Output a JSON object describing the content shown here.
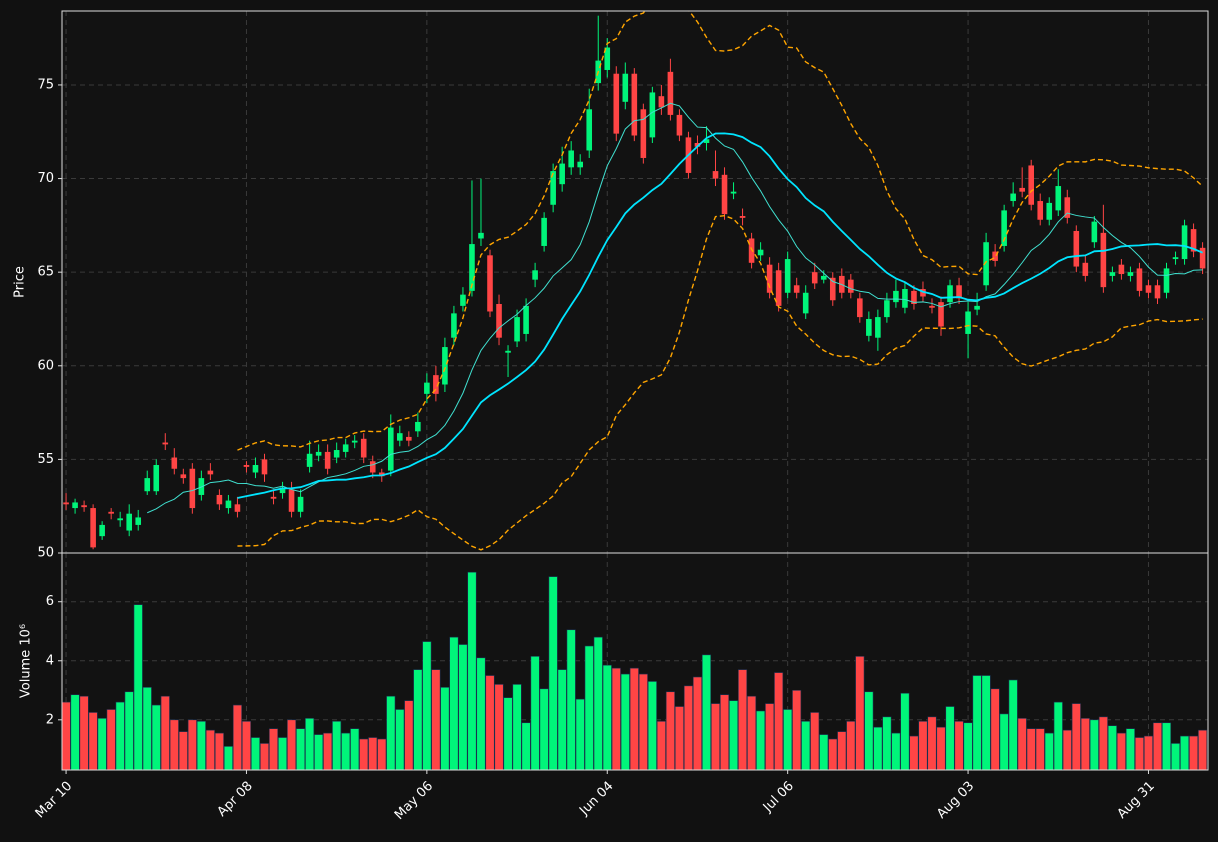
{
  "chart_data": {
    "type": "candlestick",
    "ylabel": "Price",
    "up_color": "#00f57a",
    "down_color": "#ff4545",
    "mav": [
      10,
      20
    ],
    "mav_colors": [
      "#40e0d0",
      "#00e5ff"
    ],
    "bollinger": [
      20,
      2
    ],
    "bollinger_color": "#ffa500",
    "grid": true,
    "ylim": [
      50,
      78.95
    ],
    "yticks": [
      50,
      55,
      60,
      65,
      70,
      75
    ],
    "categories": [
      "Mar 10",
      null,
      null,
      null,
      null,
      null,
      null,
      null,
      null,
      null,
      null,
      null,
      null,
      null,
      null,
      null,
      null,
      null,
      null,
      null,
      "Apr 08",
      null,
      null,
      null,
      null,
      null,
      null,
      null,
      null,
      null,
      null,
      null,
      null,
      null,
      null,
      null,
      null,
      null,
      null,
      null,
      "May 06",
      null,
      null,
      null,
      null,
      null,
      null,
      null,
      null,
      null,
      null,
      null,
      null,
      null,
      null,
      null,
      null,
      null,
      null,
      null,
      "Jun 04",
      null,
      null,
      null,
      null,
      null,
      null,
      null,
      null,
      null,
      null,
      null,
      null,
      null,
      null,
      null,
      null,
      null,
      null,
      null,
      "Jul 06",
      null,
      null,
      null,
      null,
      null,
      null,
      null,
      null,
      null,
      null,
      null,
      null,
      null,
      null,
      null,
      null,
      null,
      null,
      null,
      "Aug 03",
      null,
      null,
      null,
      null,
      null,
      null,
      null,
      null,
      null,
      null,
      null,
      null,
      null,
      null,
      null,
      null,
      null,
      null,
      null,
      "Aug 31",
      null,
      null,
      null,
      null,
      null,
      null
    ],
    "open": [
      52.7,
      52.4,
      52.55,
      52.4,
      50.9,
      52.2,
      51.75,
      51.2,
      51.5,
      53.3,
      53.3,
      55.9,
      55.1,
      54.2,
      54.5,
      53.1,
      54.4,
      53.1,
      52.4,
      52.6,
      54.7,
      54.3,
      55.0,
      53.0,
      53.2,
      53.4,
      52.2,
      54.6,
      55.2,
      55.4,
      55.1,
      55.4,
      55.9,
      56.1,
      54.9,
      54.3,
      54.4,
      56.0,
      56.2,
      56.5,
      58.5,
      59.5,
      59.0,
      61.5,
      63.2,
      64.0,
      66.8,
      65.9,
      63.3,
      60.7,
      61.3,
      61.7,
      64.6,
      66.4,
      68.6,
      69.7,
      70.6,
      70.6,
      71.5,
      75.1,
      75.8,
      75.6,
      74.1,
      75.6,
      73.7,
      72.2,
      74.4,
      75.7,
      73.4,
      72.2,
      71.9,
      71.9,
      70.4,
      70.2,
      69.2,
      68.0,
      66.8,
      65.9,
      65.4,
      65.1,
      63.9,
      64.3,
      62.8,
      65.0,
      64.6,
      64.7,
      64.8,
      64.6,
      63.6,
      61.6,
      61.5,
      62.6,
      63.4,
      63.1,
      64.0,
      64.1,
      63.2,
      63.4,
      63.4,
      64.3,
      61.7,
      63.0,
      64.3,
      66.1,
      66.4,
      68.8,
      69.5,
      70.7,
      68.8,
      67.8,
      68.3,
      69.0,
      67.2,
      65.5,
      66.6,
      67.1,
      64.8,
      65.4,
      64.8,
      65.2,
      64.3,
      64.3,
      63.9,
      65.7,
      65.7,
      67.3,
      66.3
    ],
    "high": [
      53.2,
      52.9,
      52.8,
      52.6,
      51.7,
      52.4,
      52.2,
      52.6,
      52.3,
      54.4,
      55.0,
      56.4,
      55.6,
      54.5,
      54.8,
      54.4,
      54.8,
      53.4,
      53.1,
      53.0,
      54.9,
      55.1,
      55.3,
      53.4,
      53.8,
      53.8,
      53.4,
      56.0,
      55.8,
      55.8,
      55.9,
      56.1,
      56.3,
      56.4,
      55.2,
      54.5,
      57.4,
      56.8,
      56.5,
      57.5,
      59.6,
      60.0,
      61.5,
      63.2,
      64.2,
      69.9,
      70.0,
      66.2,
      63.8,
      61.1,
      63.0,
      63.6,
      65.5,
      68.2,
      70.8,
      71.7,
      72.0,
      71.3,
      74.8,
      78.7,
      77.5,
      76.0,
      76.2,
      75.9,
      74.0,
      74.9,
      75.0,
      76.4,
      73.7,
      72.5,
      72.3,
      72.8,
      71.5,
      70.6,
      69.8,
      68.4,
      67.1,
      66.6,
      65.8,
      65.5,
      66.1,
      64.7,
      64.3,
      65.5,
      65.1,
      65.0,
      65.2,
      64.9,
      63.9,
      62.9,
      63.0,
      63.9,
      64.6,
      64.5,
      64.3,
      64.5,
      63.6,
      63.7,
      64.6,
      64.7,
      63.4,
      63.9,
      67.1,
      66.5,
      68.6,
      69.8,
      70.6,
      71.0,
      69.2,
      69.0,
      70.5,
      69.4,
      67.5,
      65.9,
      68.0,
      68.6,
      65.3,
      65.7,
      65.3,
      65.5,
      64.6,
      64.6,
      65.5,
      66.1,
      67.8,
      67.6,
      66.6
    ],
    "low": [
      52.3,
      52.1,
      52.2,
      50.2,
      50.7,
      51.8,
      51.4,
      50.9,
      51.2,
      53.1,
      53.1,
      55.5,
      54.2,
      53.7,
      52.1,
      52.8,
      53.9,
      52.3,
      52.1,
      51.9,
      54.3,
      54.0,
      53.8,
      52.6,
      52.9,
      51.9,
      51.9,
      54.3,
      54.9,
      54.2,
      54.8,
      55.1,
      55.6,
      54.8,
      54.0,
      53.8,
      54.1,
      55.7,
      55.7,
      56.2,
      58.0,
      58.1,
      58.6,
      61.1,
      62.9,
      63.7,
      66.4,
      62.6,
      61.1,
      59.4,
      61.0,
      61.3,
      64.2,
      66.1,
      68.2,
      69.3,
      70.2,
      70.2,
      71.1,
      74.7,
      75.4,
      72.0,
      73.7,
      72.0,
      70.8,
      71.9,
      73.4,
      73.1,
      72.0,
      70.0,
      71.3,
      71.5,
      69.6,
      67.8,
      68.9,
      67.5,
      65.2,
      65.6,
      63.6,
      62.9,
      63.6,
      63.6,
      62.5,
      64.1,
      64.4,
      63.2,
      63.6,
      63.6,
      62.3,
      61.3,
      60.8,
      62.3,
      63.1,
      62.8,
      63.0,
      63.4,
      62.8,
      61.6,
      63.1,
      63.3,
      60.4,
      62.7,
      64.0,
      65.3,
      66.1,
      68.5,
      69.0,
      68.3,
      67.5,
      67.5,
      68.0,
      67.6,
      65.0,
      64.5,
      66.3,
      63.9,
      64.5,
      64.6,
      64.5,
      63.7,
      63.6,
      63.3,
      63.6,
      65.4,
      65.4,
      65.8,
      64.9
    ],
    "close": [
      52.6,
      52.7,
      52.45,
      50.3,
      51.5,
      52.1,
      51.85,
      52.1,
      51.9,
      54.0,
      54.7,
      55.8,
      54.5,
      54.0,
      52.4,
      54.0,
      54.2,
      52.6,
      52.8,
      52.2,
      54.6,
      54.7,
      54.2,
      52.9,
      53.5,
      52.2,
      53.0,
      55.3,
      55.4,
      54.5,
      55.5,
      55.8,
      56.0,
      55.1,
      54.3,
      54.1,
      56.7,
      56.4,
      56.0,
      57.0,
      59.1,
      58.5,
      61.0,
      62.8,
      63.8,
      66.5,
      67.1,
      62.9,
      61.5,
      60.8,
      62.6,
      63.2,
      65.1,
      67.9,
      70.4,
      70.8,
      71.5,
      70.9,
      73.7,
      76.3,
      77.0,
      72.4,
      75.6,
      72.3,
      71.1,
      74.6,
      73.8,
      73.4,
      72.3,
      70.3,
      71.7,
      72.1,
      70.0,
      68.1,
      69.3,
      67.9,
      65.5,
      66.2,
      63.9,
      63.2,
      65.7,
      63.9,
      63.9,
      64.4,
      64.8,
      63.5,
      63.9,
      63.9,
      62.6,
      62.5,
      62.6,
      63.5,
      64.0,
      64.1,
      63.3,
      63.7,
      63.1,
      62.1,
      64.3,
      63.6,
      62.9,
      63.2,
      66.6,
      65.6,
      68.3,
      69.2,
      69.3,
      68.6,
      67.8,
      68.7,
      69.6,
      67.9,
      65.3,
      64.8,
      67.7,
      64.2,
      65.0,
      64.9,
      65.0,
      64.0,
      63.9,
      63.6,
      65.2,
      65.8,
      67.5,
      66.1,
      65.2
    ],
    "volume": {
      "ylabel": "Volume  10⁶",
      "ylim": [
        0.3,
        7.65
      ],
      "yticks": [
        2,
        4,
        6
      ],
      "values": [
        2.6,
        2.85,
        2.8,
        2.25,
        2.05,
        2.35,
        2.6,
        2.95,
        5.9,
        3.1,
        2.5,
        2.8,
        2.0,
        1.6,
        2.0,
        1.95,
        1.65,
        1.55,
        1.1,
        2.5,
        1.95,
        1.4,
        1.2,
        1.7,
        1.4,
        2.0,
        1.7,
        2.05,
        1.5,
        1.55,
        1.95,
        1.55,
        1.7,
        1.35,
        1.4,
        1.35,
        2.8,
        2.35,
        2.65,
        3.7,
        4.65,
        3.7,
        3.1,
        4.8,
        4.55,
        7.0,
        4.1,
        3.5,
        3.2,
        2.75,
        3.2,
        1.9,
        4.15,
        3.05,
        6.85,
        3.7,
        5.05,
        2.7,
        4.5,
        4.8,
        3.85,
        3.75,
        3.55,
        3.75,
        3.55,
        3.3,
        1.95,
        2.95,
        2.45,
        3.15,
        3.45,
        4.2,
        2.55,
        2.85,
        2.65,
        3.7,
        2.8,
        2.3,
        2.55,
        3.6,
        2.35,
        3.0,
        1.95,
        2.25,
        1.5,
        1.35,
        1.6,
        1.95,
        4.15,
        2.95,
        1.75,
        2.1,
        1.55,
        2.9,
        1.45,
        1.95,
        2.1,
        1.75,
        2.45,
        1.95,
        1.9,
        3.5,
        3.5,
        3.05,
        2.2,
        3.35,
        2.05,
        1.7,
        1.7,
        1.55,
        2.6,
        1.65,
        2.55,
        2.05,
        2.0,
        2.1,
        1.8,
        1.55,
        1.7,
        1.4,
        1.45,
        1.9,
        1.9,
        1.2,
        1.45,
        1.45,
        1.65
      ]
    }
  }
}
